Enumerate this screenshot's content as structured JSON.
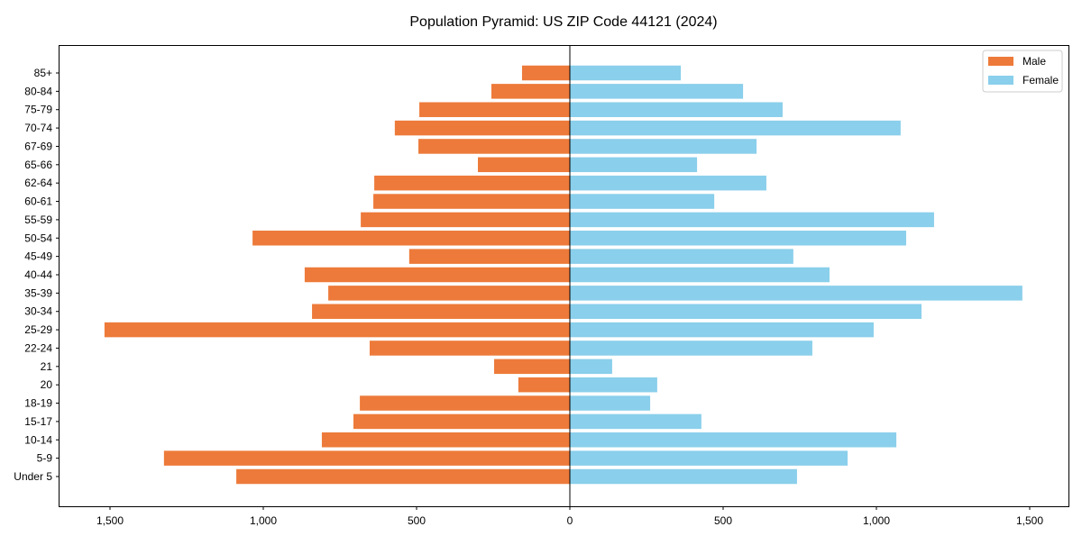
{
  "chart_data": {
    "type": "bar",
    "orientation": "horizontal",
    "title": "Population Pyramid: US ZIP Code 44121 (2024)",
    "xlabel": "",
    "ylabel": "",
    "xlim": [
      -1650,
      1620
    ],
    "xticks": [
      -1500,
      -1000,
      -500,
      0,
      500,
      1000,
      1500
    ],
    "xtick_labels": [
      "1,500",
      "1,000",
      "500",
      "0",
      "500",
      "1,000",
      "1,500"
    ],
    "categories": [
      "Under 5",
      "5-9",
      "10-14",
      "15-17",
      "18-19",
      "20",
      "21",
      "22-24",
      "25-29",
      "30-34",
      "35-39",
      "40-44",
      "45-49",
      "50-54",
      "55-59",
      "60-61",
      "62-64",
      "65-66",
      "67-69",
      "70-74",
      "75-79",
      "80-84",
      "85+"
    ],
    "series": [
      {
        "name": "Male",
        "color": "#ED7A3A",
        "values": [
          1088,
          1324,
          809,
          706,
          685,
          168,
          247,
          653,
          1518,
          841,
          788,
          865,
          524,
          1035,
          682,
          641,
          638,
          300,
          494,
          571,
          491,
          256,
          156
        ]
      },
      {
        "name": "Female",
        "color": "#8ACFEB",
        "values": [
          741,
          906,
          1065,
          429,
          262,
          285,
          138,
          791,
          991,
          1147,
          1476,
          847,
          729,
          1097,
          1188,
          471,
          641,
          415,
          609,
          1079,
          694,
          565,
          362
        ]
      }
    ],
    "legend": {
      "position": "top-right",
      "entries": [
        "Male",
        "Female"
      ]
    },
    "grid": false
  }
}
